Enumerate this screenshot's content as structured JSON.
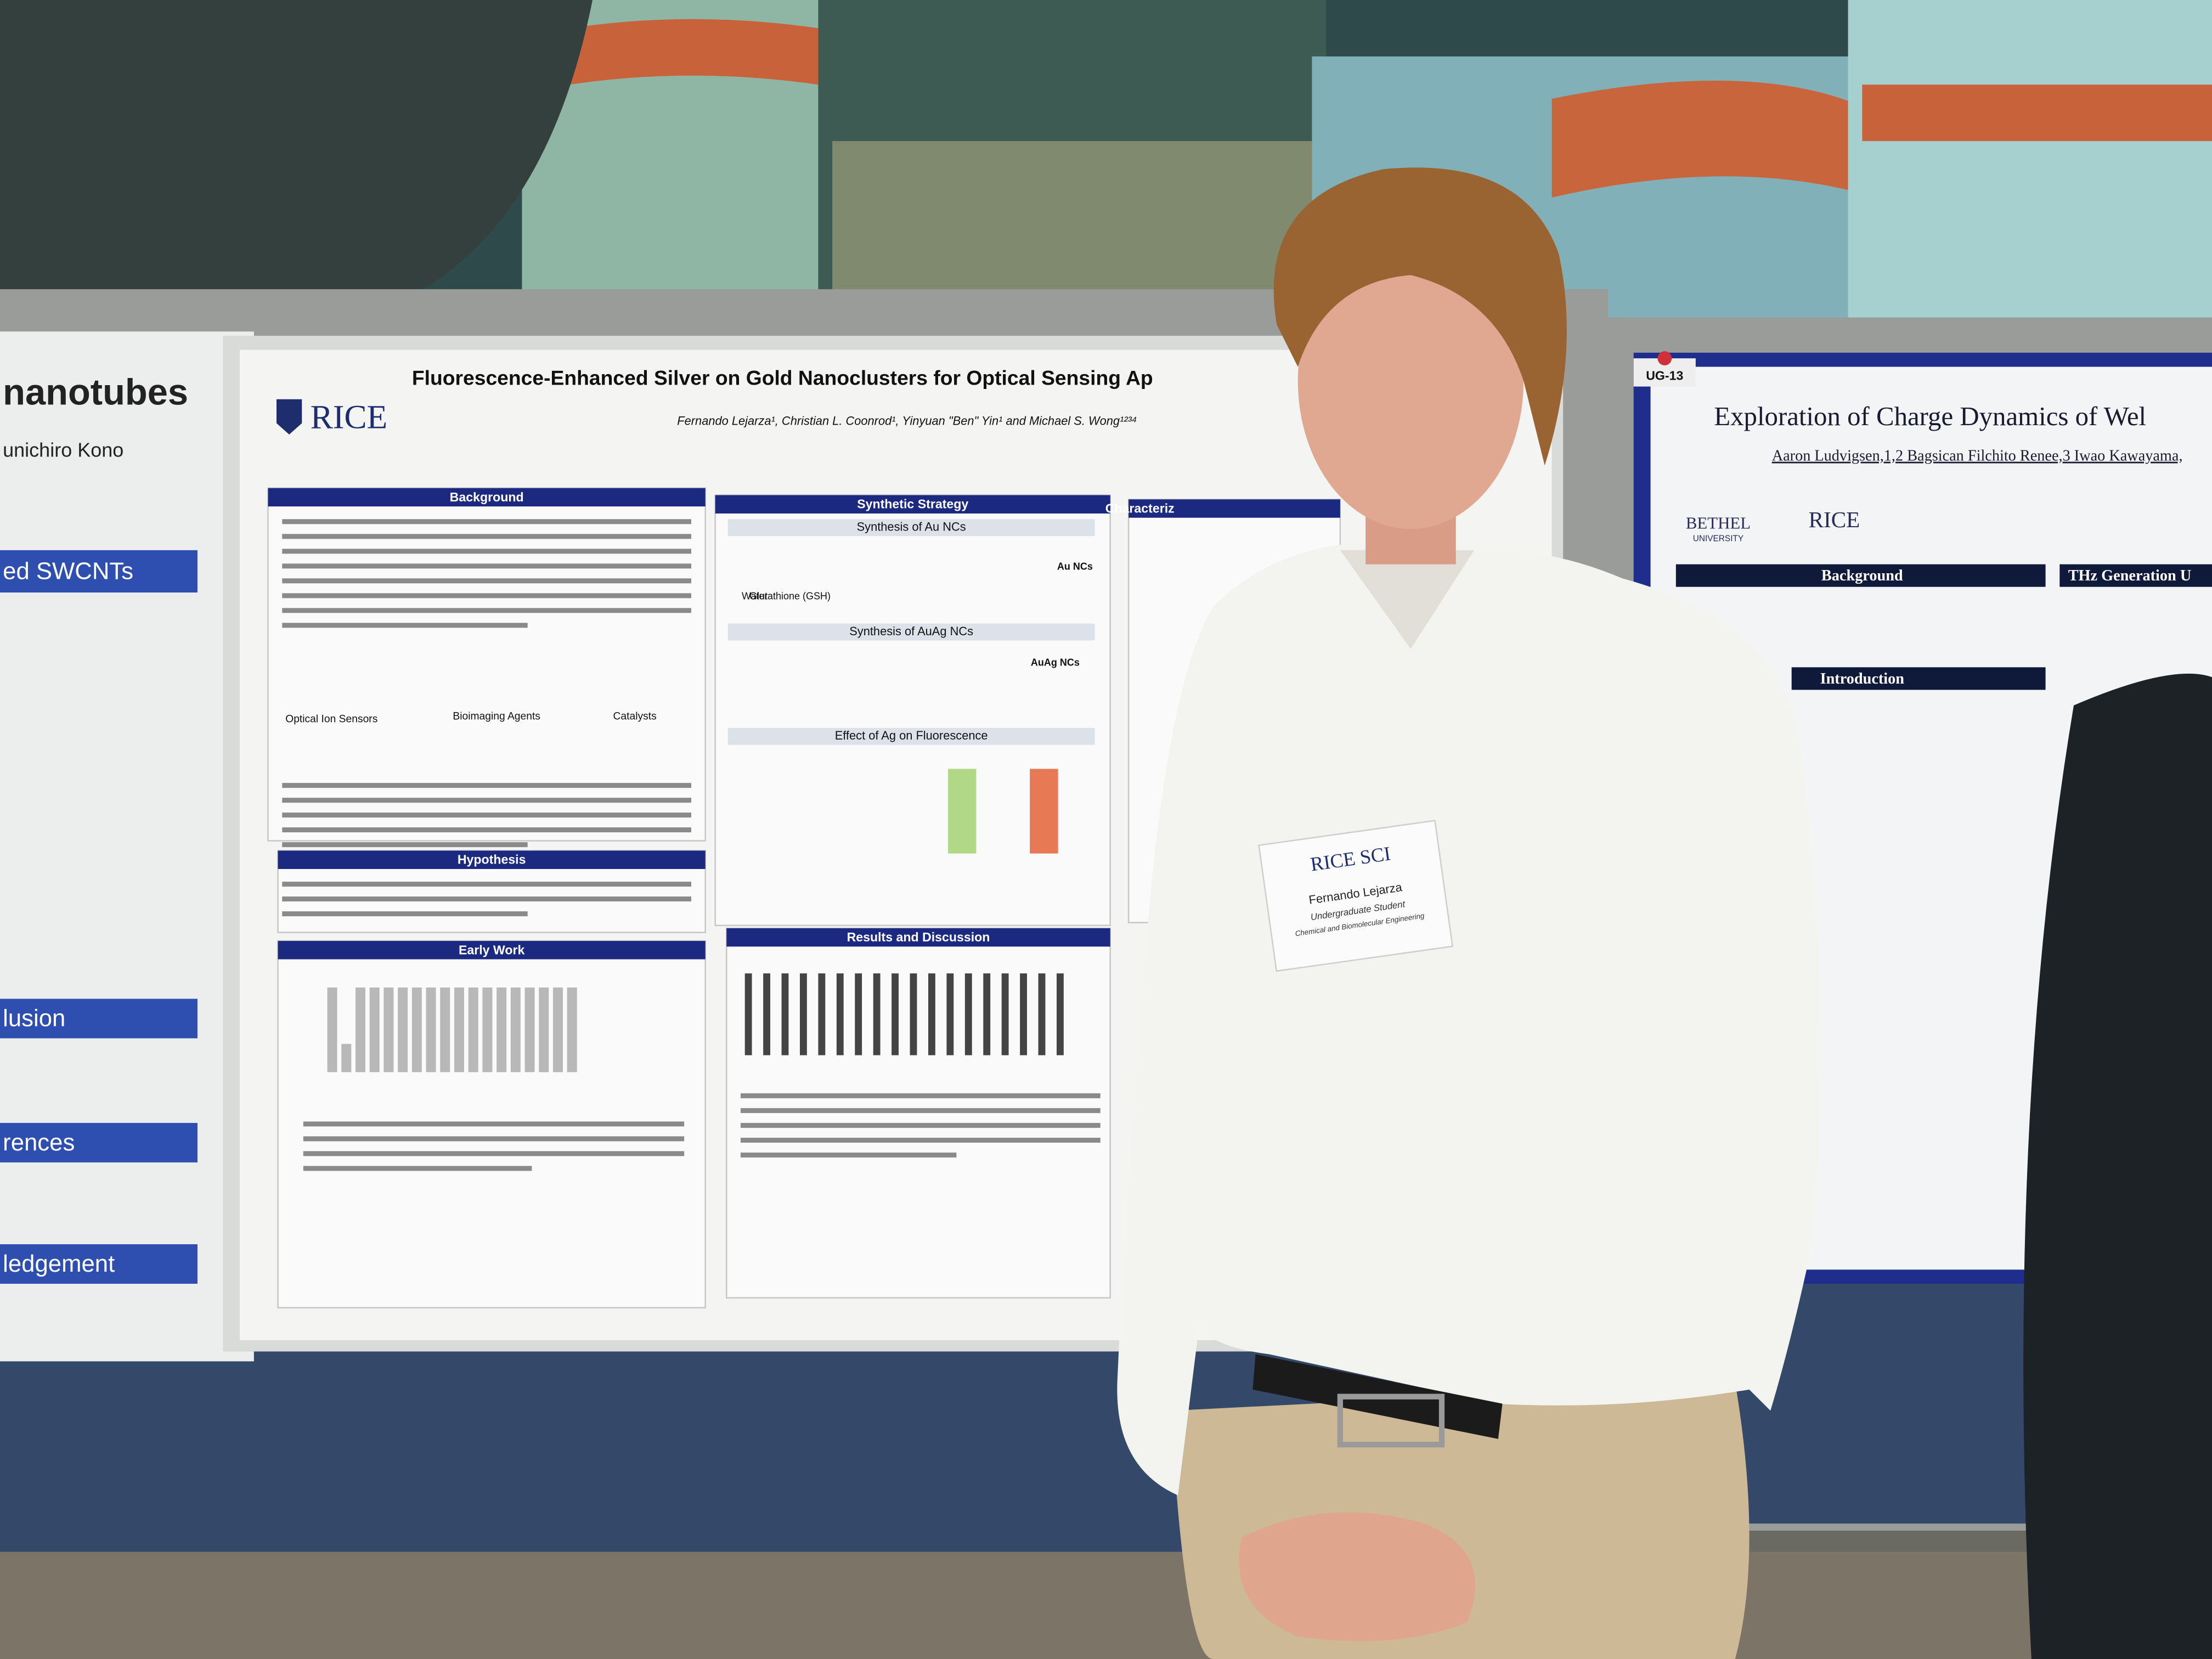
{
  "left_poster": {
    "title": "nanotubes",
    "author": "unichiro Kono",
    "sections": [
      "ed SWCNTs",
      "lusion",
      "rences",
      "ledgement"
    ]
  },
  "center_poster": {
    "title": "Fluorescence-Enhanced Silver on Gold Nanoclusters for Optical Sensing Ap",
    "logo": "RICE",
    "authors": "Fernando Lejarza¹, Christian L. Coonrod¹, Yinyuan \"Ben\" Yin¹ and Michael S. Wong¹²³⁴",
    "sections": [
      "Background",
      "Synthetic Strategy",
      "Characteriz",
      "Hypothesis",
      "Early Work",
      "Results and Discussion"
    ],
    "subsections": [
      "Synthesis of Au NCs",
      "Synthesis of AuAg NCs",
      "Effect of Ag on Fluorescence"
    ],
    "labels": [
      "Optical Ion Sensors",
      "Bioimaging Agents",
      "Catalysts",
      "Au NCs",
      "AuAg NCs",
      "Water",
      "Glutathione (GSH)"
    ]
  },
  "right_poster": {
    "tag": "UG-13",
    "title": "Exploration of Charge Dynamics of Wel",
    "authors": "Aaron Ludvigsen,1,2 Bagsican Filchito Renee,3 Iwao Kawayama,",
    "logos": [
      "BETHEL",
      "UNIVERSITY",
      "RICE"
    ],
    "sections": [
      "Background",
      "Introduction",
      "THz Generation U"
    ]
  },
  "badge": {
    "org": "RICE SCI",
    "name": "Fernando Lejarza",
    "role": "Undergraduate Student",
    "department": "Chemical and Biomolecular Engineering"
  }
}
